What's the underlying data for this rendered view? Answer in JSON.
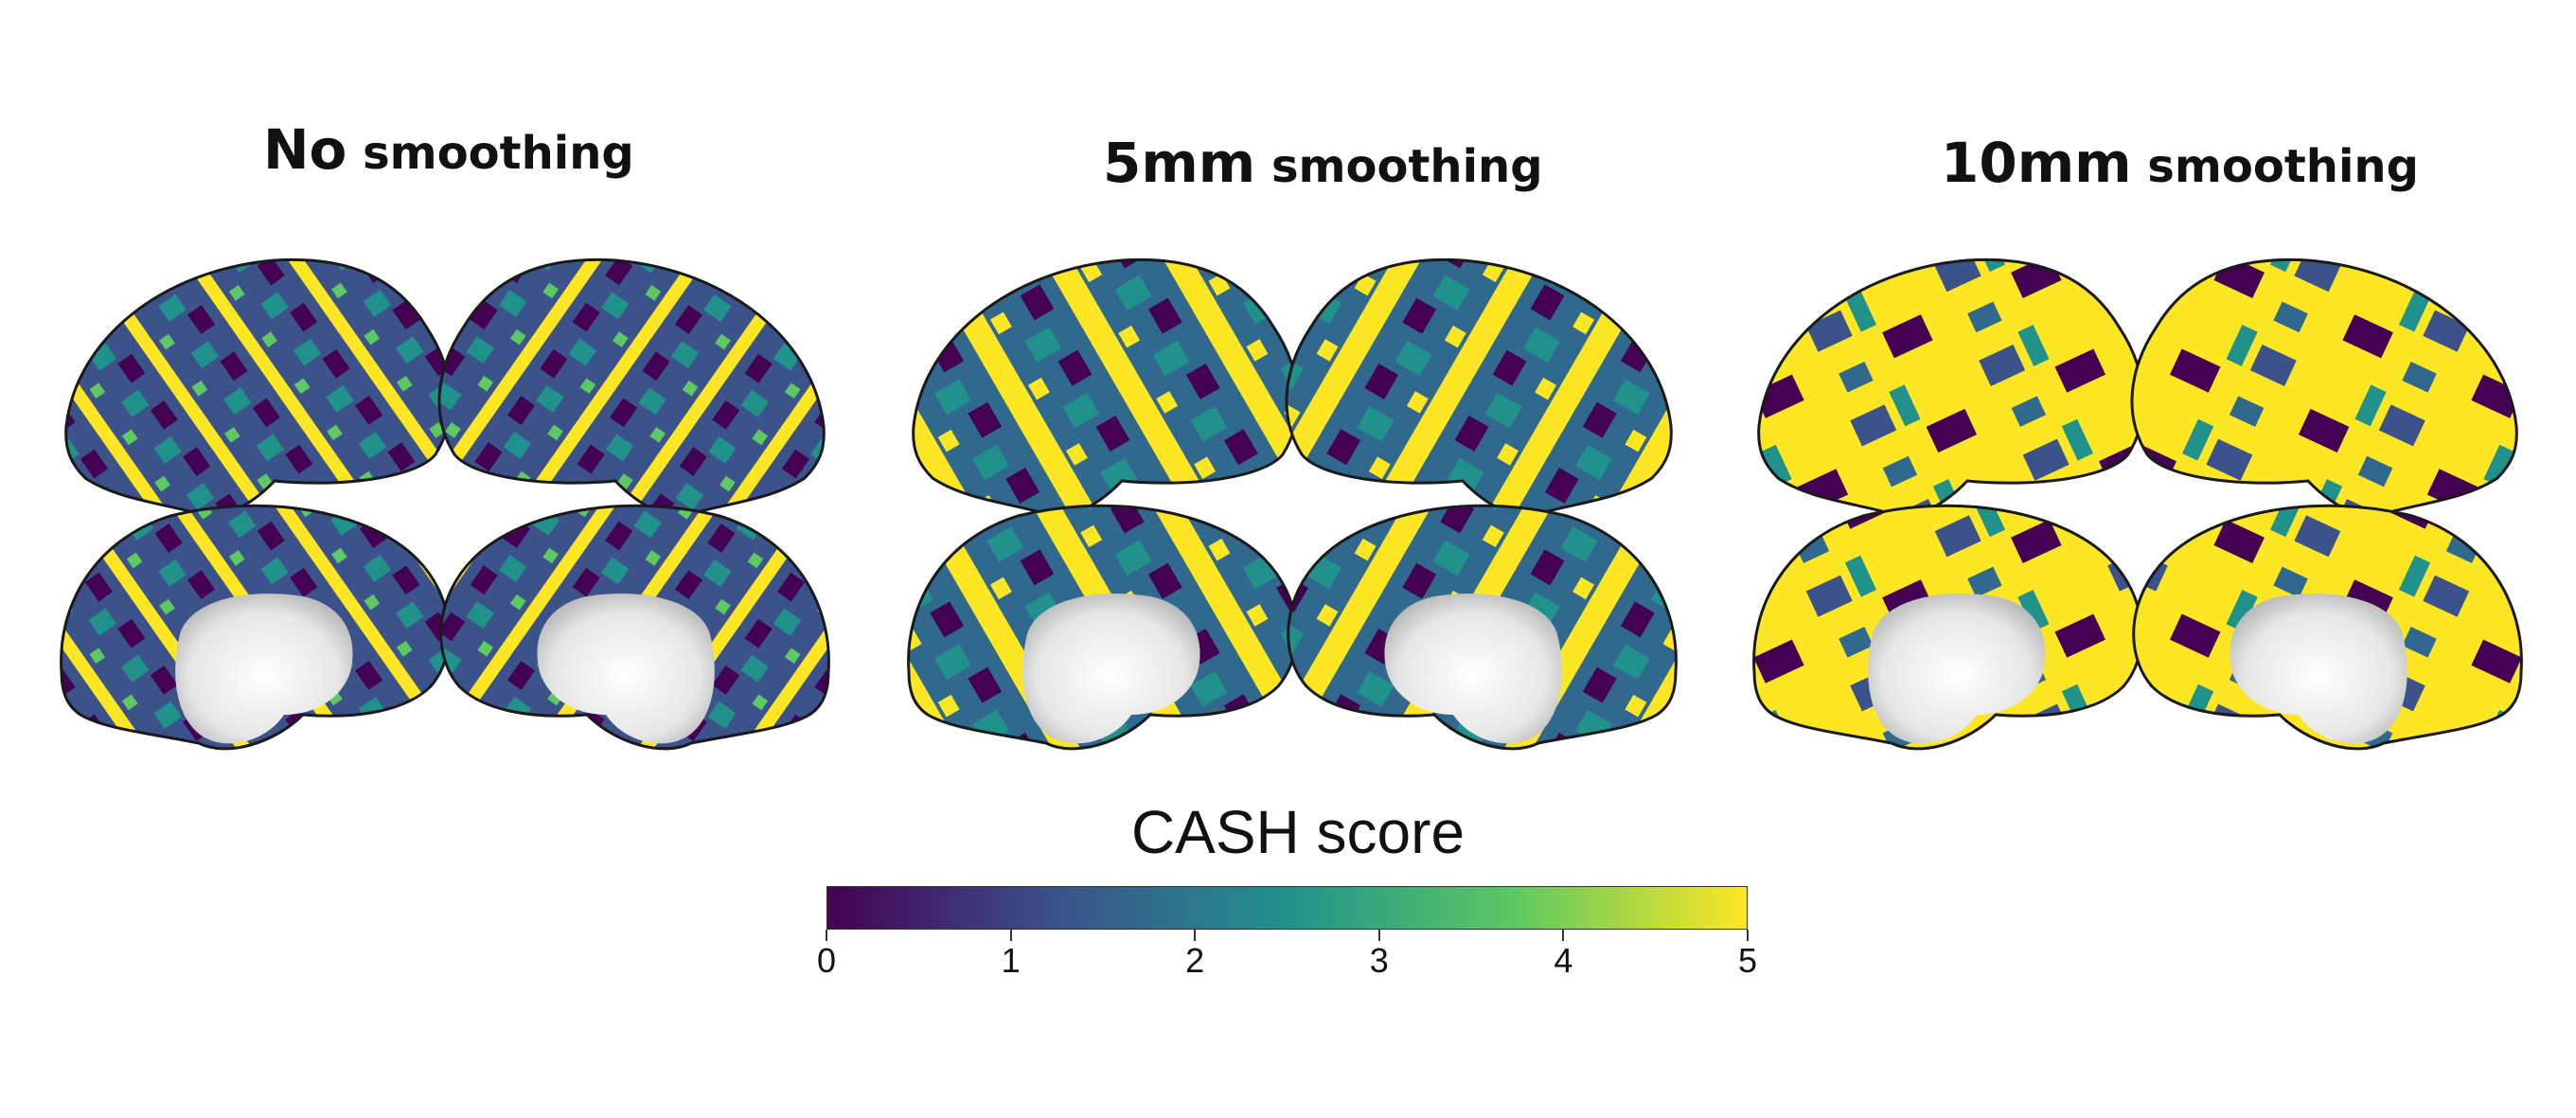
{
  "panels": [
    {
      "bold": "No",
      "rest": " smoothing"
    },
    {
      "bold": "5mm",
      "rest": " smoothing"
    },
    {
      "bold": "10mm",
      "rest": " smoothing"
    }
  ],
  "colorbar": {
    "title": "CASH score",
    "ticks": [
      "0",
      "1",
      "2",
      "3",
      "4",
      "5"
    ],
    "colormap": [
      "#440154",
      "#3b528b",
      "#21918c",
      "#5ec962",
      "#fde725"
    ]
  },
  "colors": {
    "medial_wall": "#e8e8e8",
    "outline": "#1a1a1a"
  }
}
